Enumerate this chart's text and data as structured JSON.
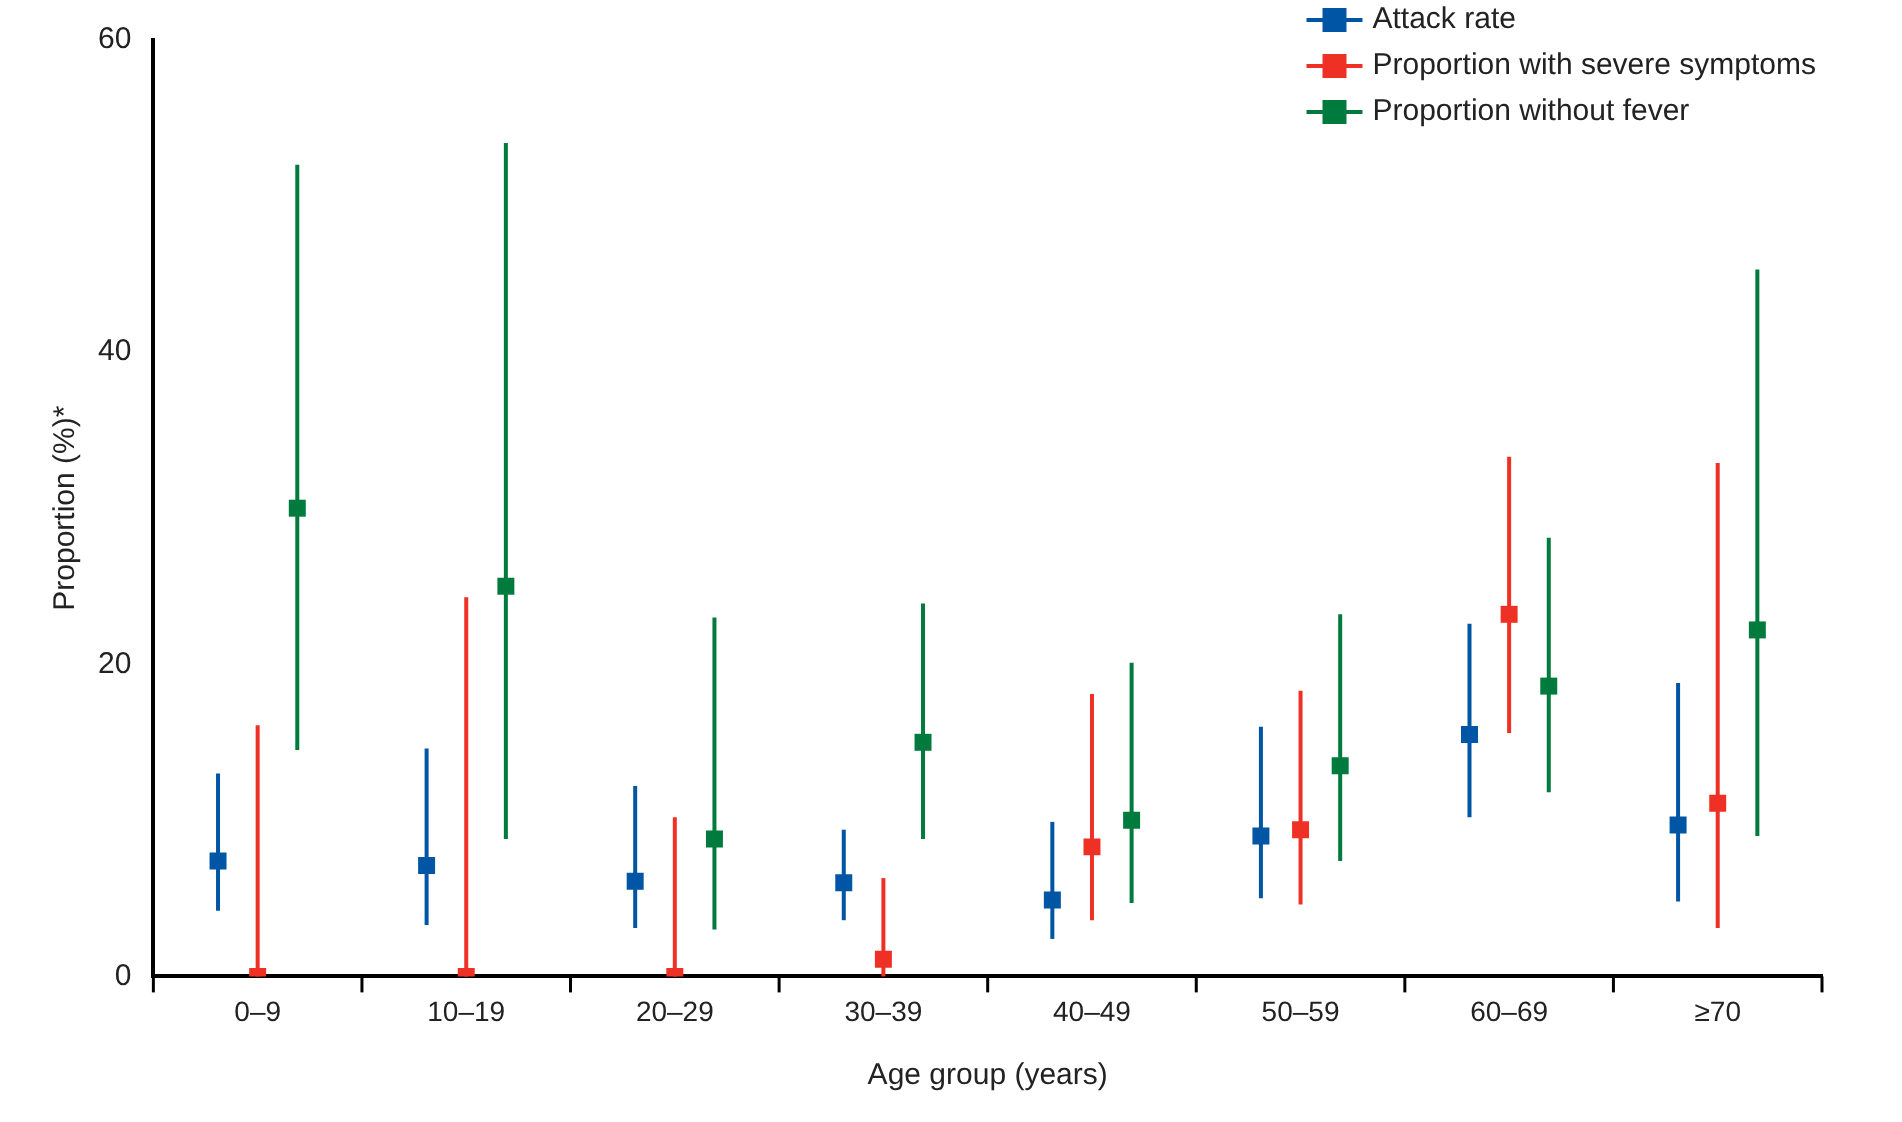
{
  "chart_data": {
    "type": "scatter",
    "xlabel": "Age group (years)",
    "ylabel": "Proportion (%)*",
    "categories": [
      "0–9",
      "10–19",
      "20–29",
      "30–39",
      "40–49",
      "50–59",
      "60–69",
      "≥70"
    ],
    "series": [
      {
        "name": "Attack rate",
        "color": "#0055a4",
        "values": [
          7.4,
          7.1,
          6.1,
          6.0,
          4.9,
          9.0,
          15.5,
          9.7
        ],
        "errors": [
          [
            4.2,
            13
          ],
          [
            3.3,
            14.6
          ],
          [
            3.1,
            12.2
          ],
          [
            3.6,
            9.4
          ],
          [
            2.4,
            9.9
          ],
          [
            5,
            16
          ],
          [
            10.2,
            22.6
          ],
          [
            4.8,
            18.8
          ]
        ]
      },
      {
        "name": "Proportion with severe symptoms",
        "color": "#ee3124",
        "values": [
          0,
          0,
          0,
          1.1,
          8.3,
          9.4,
          23.2,
          11.1
        ],
        "errors": [
          [
            0,
            16.1
          ],
          [
            0,
            24.3
          ],
          [
            0,
            10.2
          ],
          [
            0,
            6.3
          ],
          [
            3.6,
            18.1
          ],
          [
            4.6,
            18.3
          ],
          [
            15.6,
            33.3
          ],
          [
            3.1,
            32.9
          ]
        ]
      },
      {
        "name": "Proportion without fever",
        "color": "#007a3d",
        "values": [
          30,
          25,
          8.8,
          15,
          10,
          13.5,
          18.6,
          22.2
        ],
        "errors": [
          [
            14.5,
            52
          ],
          [
            8.8,
            53.4
          ],
          [
            3,
            23
          ],
          [
            8.8,
            23.9
          ],
          [
            4.7,
            20.1
          ],
          [
            7.4,
            23.2
          ],
          [
            11.8,
            28.1
          ],
          [
            9,
            45.3
          ]
        ]
      }
    ],
    "ylim": [
      0,
      60
    ],
    "yticks": [
      0,
      20,
      40,
      60
    ],
    "grid": false,
    "legend": "top right",
    "marker": "square"
  }
}
